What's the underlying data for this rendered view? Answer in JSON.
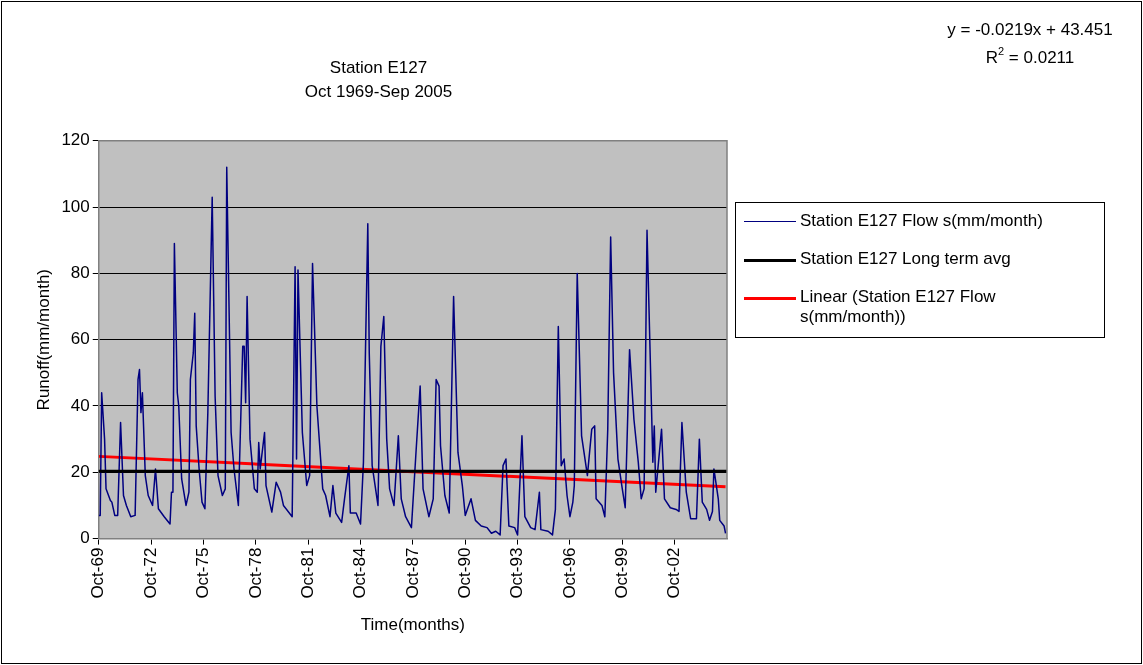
{
  "chart_data": {
    "type": "line",
    "title": "Station E127",
    "subtitle": "Oct 1969-Sep 2005",
    "xlabel": "Time(months)",
    "ylabel": "Runoff(mm/month)",
    "annotations": [
      "y = -0.0219x + 43.451",
      "R$^{2}$ = 0.0211"
    ],
    "xlim": [
      "1969-10",
      "2005-10"
    ],
    "xticks": [
      {
        "value": "1969-10",
        "label": "Oct-69"
      },
      {
        "value": "1972-10",
        "label": "Oct-72"
      },
      {
        "value": "1975-10",
        "label": "Oct-75"
      },
      {
        "value": "1978-10",
        "label": "Oct-78"
      },
      {
        "value": "1981-10",
        "label": "Oct-81"
      },
      {
        "value": "1984-10",
        "label": "Oct-84"
      },
      {
        "value": "1987-10",
        "label": "Oct-87"
      },
      {
        "value": "1990-10",
        "label": "Oct-90"
      },
      {
        "value": "1993-10",
        "label": "Oct-93"
      },
      {
        "value": "1996-10",
        "label": "Oct-96"
      },
      {
        "value": "1999-10",
        "label": "Oct-99"
      },
      {
        "value": "2002-10",
        "label": "Oct-02"
      }
    ],
    "ylim": [
      0,
      120
    ],
    "yticks": [
      0,
      20,
      40,
      60,
      80,
      100,
      120
    ],
    "grid": "y",
    "legend": "right",
    "marker": "none",
    "line_style": "solid",
    "series": [
      {
        "name": "Station E127 Flow s(mm/month)",
        "color": "#000080",
        "x": [
          "1969-10",
          "1969-11",
          "1969-12",
          "1970-02",
          "1970-03",
          "1970-06",
          "1970-07",
          "1970-09",
          "1970-11",
          "1971-01",
          "1971-03",
          "1971-05",
          "1971-08",
          "1971-11",
          "1972-01",
          "1972-02",
          "1972-03",
          "1972-04",
          "1972-06",
          "1972-08",
          "1972-11",
          "1973-01",
          "1973-03",
          "1973-07",
          "1973-11",
          "1973-12",
          "1974-01",
          "1974-02",
          "1974-04",
          "1974-05",
          "1974-07",
          "1974-10",
          "1974-12",
          "1975-01",
          "1975-03",
          "1975-04",
          "1975-05",
          "1975-07",
          "1975-09",
          "1975-11",
          "1976-01",
          "1976-04",
          "1976-06",
          "1976-08",
          "1976-11",
          "1977-01",
          "1977-02",
          "1977-05",
          "1977-07",
          "1977-10",
          "1978-01",
          "1978-02",
          "1978-03",
          "1978-04",
          "1978-06",
          "1978-09",
          "1978-11",
          "1978-12",
          "1979-01",
          "1979-04",
          "1979-05",
          "1979-09",
          "1979-12",
          "1980-03",
          "1980-05",
          "1980-11",
          "1981-01",
          "1981-02",
          "1981-03",
          "1981-05",
          "1981-06",
          "1981-09",
          "1981-11",
          "1982-01",
          "1982-04",
          "1982-08",
          "1982-10",
          "1983-01",
          "1983-03",
          "1983-05",
          "1983-09",
          "1983-11",
          "1984-02",
          "1984-03",
          "1984-07",
          "1984-10",
          "1984-12",
          "1985-03",
          "1985-04",
          "1985-06",
          "1985-10",
          "1985-12",
          "1986-02",
          "1986-04",
          "1986-06",
          "1986-09",
          "1986-12",
          "1987-02",
          "1987-05",
          "1987-09",
          "1987-12",
          "1988-03",
          "1988-05",
          "1988-09",
          "1988-12",
          "1989-02",
          "1989-04",
          "1989-05",
          "1989-08",
          "1989-11",
          "1990-02",
          "1990-05",
          "1990-08",
          "1990-10",
          "1991-02",
          "1991-05",
          "1991-09",
          "1992-01",
          "1992-04",
          "1992-07",
          "1992-10",
          "1992-12",
          "1993-02",
          "1993-04",
          "1993-08",
          "1993-10",
          "1994-01",
          "1994-03",
          "1994-07",
          "1994-10",
          "1995-01",
          "1995-02",
          "1995-07",
          "1995-10",
          "1995-12",
          "1996-02",
          "1996-04",
          "1996-06",
          "1996-08",
          "1996-10",
          "1996-12",
          "1997-01",
          "1997-03",
          "1997-06",
          "1997-08",
          "1997-10",
          "1998-01",
          "1998-03",
          "1998-04",
          "1998-08",
          "1998-10",
          "1998-12",
          "1999-02",
          "1999-04",
          "1999-07",
          "1999-10",
          "1999-12",
          "2000-03",
          "2000-06",
          "2000-09",
          "2000-11",
          "2001-01",
          "2001-03",
          "2001-06",
          "2001-07",
          "2001-08",
          "2001-09",
          "2002-01",
          "2002-03",
          "2002-07",
          "2002-11",
          "2003-01",
          "2003-03",
          "2003-06",
          "2003-09",
          "2004-01",
          "2004-03",
          "2004-05",
          "2004-08",
          "2004-10",
          "2004-12",
          "2005-01",
          "2005-04",
          "2005-05",
          "2005-08",
          "2005-09"
        ],
        "values": [
          7,
          7,
          44,
          30,
          15,
          11.5,
          11,
          7,
          7,
          35,
          13,
          10,
          6.6,
          7,
          48,
          51,
          38,
          44,
          19,
          13,
          10,
          21,
          9,
          6.6,
          4.4,
          14,
          14,
          89,
          44,
          40,
          18,
          10,
          14,
          48,
          56,
          68,
          34,
          21,
          11,
          9,
          38,
          103,
          43,
          19,
          13,
          15,
          112,
          32,
          21,
          10,
          58,
          58,
          41,
          73,
          30,
          15,
          14,
          29,
          21,
          32,
          16,
          8,
          17,
          14,
          10,
          6.6,
          82,
          24,
          81,
          48,
          32,
          16,
          19,
          83,
          40,
          15,
          13,
          6.6,
          16,
          7.7,
          4.9,
          12,
          22,
          7.7,
          7.7,
          4.4,
          23,
          95,
          56,
          22,
          10,
          58,
          67,
          30,
          15,
          10,
          31,
          12,
          6.6,
          3.3,
          25,
          46,
          15,
          6.6,
          12,
          48,
          46,
          28,
          13,
          7.7,
          73,
          26,
          16,
          7,
          12,
          5.5,
          3.8,
          3.3,
          1.6,
          2.2,
          1.1,
          22,
          24,
          3.8,
          3.3,
          1.1,
          31,
          6.6,
          3.3,
          2.7,
          14,
          2.7,
          2.2,
          1.1,
          8.8,
          64,
          22,
          24,
          13,
          6.6,
          11,
          16,
          80,
          31,
          25,
          19,
          33,
          34,
          12,
          10,
          6.6,
          33,
          91,
          50,
          24,
          15,
          9.3,
          57,
          36,
          23,
          12,
          15,
          93,
          41,
          23,
          34,
          14,
          33,
          12,
          9.3,
          8.8,
          8.2,
          35,
          14,
          6,
          6,
          30,
          11,
          8.8,
          5.5,
          8.2,
          21,
          12,
          5.5,
          3.8,
          1.6
        ]
      },
      {
        "name": "Linear (Station E127 Flow s(mm/month))",
        "color": "#ff0000",
        "x": [
          "1969-10",
          "2005-09"
        ],
        "values": [
          24.8,
          15.6
        ]
      }
    ],
    "ref_lines": [
      {
        "axis": "y",
        "value": 20.3,
        "label": "Station E127 Long term avg",
        "color": "#000000"
      }
    ]
  }
}
